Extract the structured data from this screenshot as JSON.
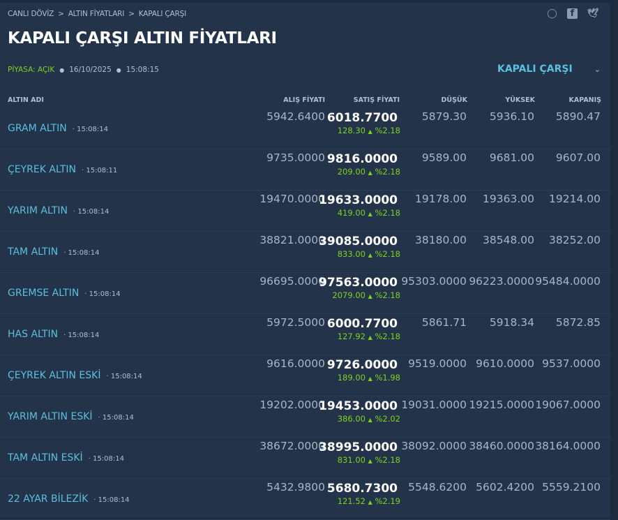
{
  "breadcrumb": [
    "CANLI DÖVİZ",
    "ALTIN FİYATLARI",
    "KAPALI ÇARŞI"
  ],
  "social": [
    "whatsapp-icon",
    "facebook-icon",
    "twitter-icon"
  ],
  "title": "KAPALI ÇARŞI ALTIN FİYATLARI",
  "status": {
    "market": "PİYASA: AÇIK",
    "date": "16/10/2025",
    "time": "15:08:15"
  },
  "market_select": "KAPALI ÇARŞI",
  "colors": {
    "accent": "#5bc0de",
    "up": "#7ed321",
    "background": "#233349"
  },
  "columns": [
    "ALTIN ADI",
    "ALIŞ FİYATI",
    "SATIŞ FİYATI",
    "DÜŞÜK",
    "YÜKSEK",
    "KAPANIŞ"
  ],
  "rows": [
    {
      "name": "GRAM ALTIN",
      "time": "15:08:14",
      "buy": "5942.6400",
      "sell": "6018.7700",
      "change": "128.30",
      "pct": "%2.18",
      "low": "5879.30",
      "high": "5936.10",
      "close": "5890.47"
    },
    {
      "name": "ÇEYREK ALTIN",
      "time": "15:08:11",
      "buy": "9735.0000",
      "sell": "9816.0000",
      "change": "209.00",
      "pct": "%2.18",
      "low": "9589.00",
      "high": "9681.00",
      "close": "9607.00"
    },
    {
      "name": "YARIM ALTIN",
      "time": "15:08:14",
      "buy": "19470.0000",
      "sell": "19633.0000",
      "change": "419.00",
      "pct": "%2.18",
      "low": "19178.00",
      "high": "19363.00",
      "close": "19214.00"
    },
    {
      "name": "TAM ALTIN",
      "time": "15:08:14",
      "buy": "38821.0000",
      "sell": "39085.0000",
      "change": "833.00",
      "pct": "%2.18",
      "low": "38180.00",
      "high": "38548.00",
      "close": "38252.00"
    },
    {
      "name": "GREMSE ALTIN",
      "time": "15:08:14",
      "buy": "96695.0000",
      "sell": "97563.0000",
      "change": "2079.00",
      "pct": "%2.18",
      "low": "95303.0000",
      "high": "96223.0000",
      "close": "95484.0000"
    },
    {
      "name": "HAS ALTIN",
      "time": "15:08:14",
      "buy": "5972.5000",
      "sell": "6000.7700",
      "change": "127.92",
      "pct": "%2.18",
      "low": "5861.71",
      "high": "5918.34",
      "close": "5872.85"
    },
    {
      "name": "ÇEYREK ALTIN ESKİ",
      "time": "15:08:14",
      "buy": "9616.0000",
      "sell": "9726.0000",
      "change": "189.00",
      "pct": "%1.98",
      "low": "9519.0000",
      "high": "9610.0000",
      "close": "9537.0000"
    },
    {
      "name": "YARIM ALTIN ESKİ",
      "time": "15:08:14",
      "buy": "19202.0000",
      "sell": "19453.0000",
      "change": "386.00",
      "pct": "%2.02",
      "low": "19031.0000",
      "high": "19215.0000",
      "close": "19067.0000"
    },
    {
      "name": "TAM ALTIN ESKİ",
      "time": "15:08:14",
      "buy": "38672.0000",
      "sell": "38995.0000",
      "change": "831.00",
      "pct": "%2.18",
      "low": "38092.0000",
      "high": "38460.0000",
      "close": "38164.0000"
    },
    {
      "name": "22 AYAR BİLEZİK",
      "time": "15:08:14",
      "buy": "5432.9800",
      "sell": "5680.7300",
      "change": "121.52",
      "pct": "%2.19",
      "low": "5548.6200",
      "high": "5602.4200",
      "close": "5559.2100"
    }
  ]
}
